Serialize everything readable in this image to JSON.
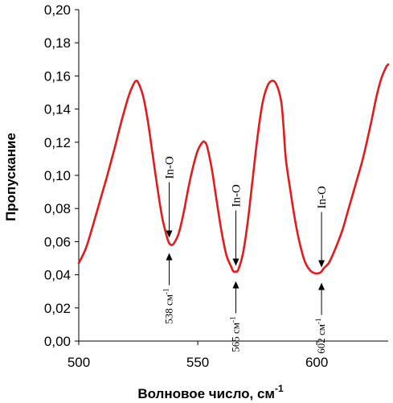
{
  "chart_data": {
    "type": "line",
    "title": "",
    "xlabel": "Волновое число, см",
    "xlabel_superscript": "-1",
    "ylabel": "Пропускание",
    "xlim": [
      500,
      630
    ],
    "ylim": [
      0,
      0.2
    ],
    "xticks": [
      500,
      550,
      600
    ],
    "xtick_labels": [
      "500",
      "550",
      "600"
    ],
    "yticks": [
      0,
      0.02,
      0.04,
      0.06,
      0.08,
      0.1,
      0.12,
      0.14,
      0.16,
      0.18,
      0.2
    ],
    "ytick_labels": [
      "0,00",
      "0,02",
      "0,04",
      "0,06",
      "0,08",
      "0,10",
      "0,12",
      "0,14",
      "0,16",
      "0,18",
      "0,20"
    ],
    "grid": false,
    "line_color": "#e41a1c",
    "series": [
      {
        "x": [
          500,
          503,
          506,
          509,
          512,
          515,
          518,
          521,
          523,
          524,
          525,
          527,
          529,
          531,
          533,
          535,
          537,
          538,
          539,
          540,
          542,
          544,
          546,
          548,
          550,
          552,
          553,
          554,
          556,
          558,
          560,
          562,
          564,
          565,
          566,
          567,
          569,
          571,
          573,
          575,
          577,
          579,
          581,
          583,
          585,
          586,
          587,
          589,
          591,
          593,
          595,
          597,
          599,
          601,
          602,
          603,
          605,
          607,
          609,
          611,
          613,
          615,
          617,
          619,
          621,
          623,
          625,
          627,
          629,
          630
        ],
        "y": [
          0.047,
          0.056,
          0.07,
          0.085,
          0.1,
          0.116,
          0.133,
          0.148,
          0.155,
          0.157,
          0.156,
          0.148,
          0.133,
          0.113,
          0.093,
          0.075,
          0.063,
          0.059,
          0.058,
          0.059,
          0.065,
          0.077,
          0.092,
          0.105,
          0.115,
          0.12,
          0.12,
          0.117,
          0.103,
          0.084,
          0.066,
          0.052,
          0.045,
          0.042,
          0.042,
          0.043,
          0.053,
          0.072,
          0.097,
          0.122,
          0.142,
          0.153,
          0.157,
          0.155,
          0.145,
          0.13,
          0.11,
          0.09,
          0.072,
          0.058,
          0.048,
          0.043,
          0.041,
          0.041,
          0.042,
          0.044,
          0.047,
          0.053,
          0.06,
          0.068,
          0.078,
          0.088,
          0.098,
          0.108,
          0.12,
          0.133,
          0.147,
          0.158,
          0.165,
          0.167
        ]
      }
    ],
    "annotations": [
      {
        "label": "In-O",
        "wavenumber_label": "538 см",
        "sup": "-1",
        "x": 538,
        "y": 0.059
      },
      {
        "label": "In-O",
        "wavenumber_label": "565 см",
        "sup": "-1",
        "x": 566,
        "y": 0.042
      },
      {
        "label": "In-O",
        "wavenumber_label": "602 см",
        "sup": "-1",
        "x": 602,
        "y": 0.041
      }
    ]
  }
}
